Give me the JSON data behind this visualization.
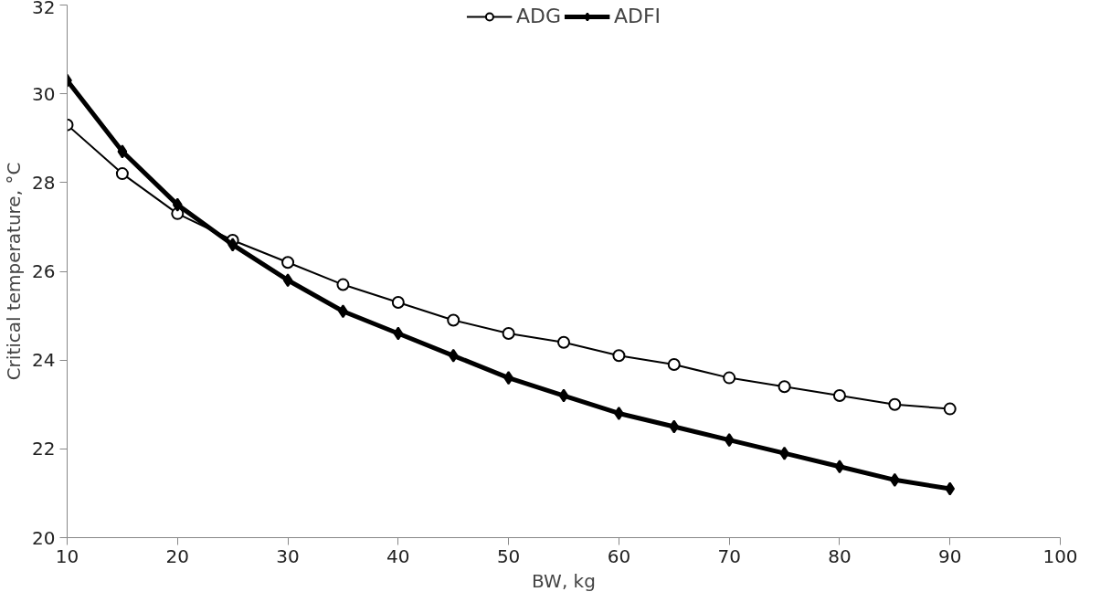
{
  "chart_data": {
    "type": "line",
    "xlabel": "BW, kg",
    "ylabel": "Critical temperature, °C",
    "x": [
      10,
      15,
      20,
      25,
      30,
      35,
      40,
      45,
      50,
      55,
      60,
      65,
      70,
      75,
      80,
      85,
      90
    ],
    "series": [
      {
        "name": "ADG",
        "color": "#000000",
        "marker": "circle",
        "values": [
          29.3,
          28.2,
          27.3,
          26.7,
          26.2,
          25.7,
          25.3,
          24.9,
          24.6,
          24.4,
          24.1,
          23.9,
          23.6,
          23.4,
          23.2,
          23.0,
          22.9
        ]
      },
      {
        "name": "ADFI",
        "color": "#000000",
        "marker": "diamond",
        "values": [
          30.3,
          28.7,
          27.5,
          26.6,
          25.8,
          25.1,
          24.6,
          24.1,
          23.6,
          23.2,
          22.8,
          22.5,
          22.2,
          21.9,
          21.6,
          21.3,
          21.1
        ]
      }
    ],
    "xlim": [
      10,
      100
    ],
    "xticks": [
      10,
      20,
      30,
      40,
      50,
      60,
      70,
      80,
      90,
      100
    ],
    "ylim": [
      20,
      32
    ],
    "yticks": [
      20,
      22,
      24,
      26,
      28,
      30,
      32
    ],
    "grid": false,
    "legend": "top",
    "line_style": "solid"
  }
}
